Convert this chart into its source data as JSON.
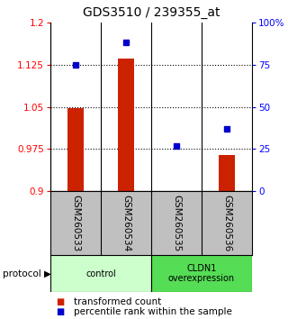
{
  "title": "GDS3510 / 239355_at",
  "samples": [
    "GSM260533",
    "GSM260534",
    "GSM260535",
    "GSM260536"
  ],
  "red_values": [
    1.048,
    1.135,
    0.901,
    0.965
  ],
  "blue_values": [
    75,
    88,
    27,
    37
  ],
  "ylim_left": [
    0.9,
    1.2
  ],
  "ylim_right": [
    0,
    100
  ],
  "left_ticks": [
    0.9,
    0.975,
    1.05,
    1.125,
    1.2
  ],
  "left_tick_labels": [
    "0.9",
    "0.975",
    "1.05",
    "1.125",
    "1.2"
  ],
  "right_ticks": [
    0,
    25,
    50,
    75,
    100
  ],
  "right_tick_labels": [
    "0",
    "25",
    "50",
    "75",
    "100%"
  ],
  "hlines": [
    0.975,
    1.05,
    1.125
  ],
  "groups": [
    {
      "label": "control",
      "samples": [
        0,
        1
      ],
      "color": "#ccffcc"
    },
    {
      "label": "CLDN1\noverexpression",
      "samples": [
        2,
        3
      ],
      "color": "#55dd55"
    }
  ],
  "bar_color": "#cc2200",
  "dot_color": "#0000cc",
  "background_color": "#ffffff",
  "plot_bg": "#ffffff",
  "tick_area_color": "#c0c0c0",
  "bar_width": 0.32,
  "title_fontsize": 10,
  "tick_fontsize": 7.5,
  "label_fontsize": 7.5,
  "legend_fontsize": 7.5
}
